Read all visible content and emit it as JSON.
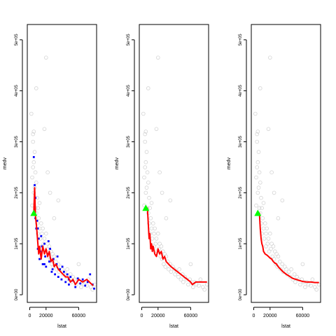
{
  "chart_data": [
    {
      "type": "scatter",
      "xlabel": "lstat",
      "ylabel": "medv",
      "xticks": [
        0,
        20000,
        60000
      ],
      "xtick_labels": [
        "0",
        "20000",
        "60000"
      ],
      "yticks": [
        0,
        100000,
        200000,
        300000,
        400000,
        500000
      ],
      "ytick_labels": [
        "0e+00",
        "1e+05",
        "2e+05",
        "3e+05",
        "4e+05",
        "5e+05"
      ],
      "xlim": [
        -3000,
        82000
      ],
      "ylim": [
        -15000,
        530000
      ],
      "colors": {
        "background_points": "#d3d3d3",
        "sample_points": "#0000ff",
        "line": "#ff0000",
        "marker": "#00ff00"
      },
      "start_point": {
        "x": 5000,
        "y": 160000
      },
      "line": {
        "x": [
          5000,
          6000,
          7000,
          8000,
          9000,
          10000,
          11000,
          12000,
          14000,
          16000,
          18000,
          20000,
          22000,
          24000,
          26000,
          28000,
          30000,
          32000,
          35000,
          38000,
          41000,
          44000,
          47000,
          50000,
          53000,
          56000,
          60000,
          65000,
          70000,
          75000,
          78000
        ],
        "y": [
          160000,
          210000,
          155000,
          140000,
          120000,
          100000,
          80000,
          95000,
          70000,
          95000,
          80000,
          90000,
          75000,
          85000,
          65000,
          70000,
          55000,
          60000,
          50000,
          45000,
          40000,
          35000,
          35000,
          25000,
          30000,
          20000,
          30000,
          25000,
          30000,
          22000,
          18000
        ]
      },
      "highlight_points": {
        "x": [
          5000,
          6000,
          7000,
          7000,
          8000,
          9000,
          10000,
          11000,
          12000,
          13000,
          15000,
          16000,
          18000,
          19000,
          20000,
          22000,
          24000,
          25000,
          27000,
          29000,
          31000,
          33000,
          35000,
          37000,
          39000,
          42000,
          44000,
          46000,
          48000,
          50000,
          53000,
          56000,
          59000,
          62000,
          65000,
          68000,
          71000,
          74000,
          77000,
          79000,
          10000,
          14000,
          18000,
          23000,
          28000,
          34000,
          40000,
          48000
        ],
        "y": [
          270000,
          215000,
          150000,
          190000,
          130000,
          145000,
          90000,
          110000,
          70000,
          85000,
          95000,
          60000,
          100000,
          75000,
          55000,
          80000,
          65000,
          90000,
          45000,
          70000,
          40000,
          60000,
          35000,
          50000,
          30000,
          45000,
          25000,
          40000,
          20000,
          35000,
          28000,
          15000,
          32000,
          22000,
          30000,
          18000,
          25000,
          40000,
          20000,
          12000,
          130000,
          115000,
          60000,
          105000,
          50000,
          75000,
          55000,
          30000
        ]
      },
      "background_points": {
        "x": [
          2000,
          3000,
          3000,
          4000,
          4000,
          5000,
          5000,
          5000,
          6000,
          6000,
          7000,
          7000,
          8000,
          8000,
          9000,
          9000,
          10000,
          10000,
          11000,
          12000,
          12000,
          13000,
          14000,
          15000,
          15000,
          16000,
          17000,
          18000,
          19000,
          20000,
          21000,
          22000,
          23000,
          24000,
          25000,
          26000,
          27000,
          28000,
          29000,
          30000,
          32000,
          33000,
          35000,
          36000,
          38000,
          40000,
          41000,
          43000,
          45000,
          46000,
          48000,
          50000,
          51000,
          53000,
          55000,
          57000,
          59000,
          61000,
          63000,
          65000,
          67000,
          70000,
          72000,
          75000,
          77000,
          80000,
          20000,
          22000,
          8000,
          35000,
          18000,
          4000,
          60000,
          30000,
          25000
        ],
        "y": [
          355000,
          230000,
          175000,
          250000,
          300000,
          320000,
          260000,
          200000,
          280000,
          210000,
          240000,
          170000,
          220000,
          160000,
          190000,
          140000,
          170000,
          120000,
          150000,
          130000,
          180000,
          110000,
          140000,
          120000,
          95000,
          130000,
          100000,
          110000,
          85000,
          120000,
          90000,
          100000,
          75000,
          95000,
          70000,
          85000,
          60000,
          80000,
          55000,
          75000,
          65000,
          50000,
          60000,
          45000,
          55000,
          50000,
          40000,
          45000,
          35000,
          50000,
          30000,
          40000,
          25000,
          35000,
          30000,
          20000,
          30000,
          25000,
          15000,
          25000,
          20000,
          18000,
          30000,
          15000,
          10000,
          20000,
          465000,
          240000,
          405000,
          185000,
          325000,
          315000,
          60000,
          150000,
          200000
        ]
      }
    },
    {
      "type": "scatter",
      "xlabel": "lstat",
      "ylabel": "medv",
      "xticks": [
        0,
        20000,
        60000
      ],
      "xtick_labels": [
        "0",
        "20000",
        "60000"
      ],
      "yticks": [
        0,
        100000,
        200000,
        300000,
        400000,
        500000
      ],
      "ytick_labels": [
        "0e+00",
        "1e+05",
        "2e+05",
        "3e+05",
        "4e+05",
        "5e+05"
      ],
      "xlim": [
        -3000,
        82000
      ],
      "ylim": [
        -15000,
        530000
      ],
      "colors": {
        "background_points": "#d3d3d3",
        "line": "#ff0000",
        "marker": "#00ff00"
      },
      "start_point": {
        "x": 5000,
        "y": 170000
      },
      "line": {
        "x": [
          5000,
          7000,
          8000,
          9000,
          10000,
          11000,
          12000,
          13000,
          14000,
          16000,
          18000,
          20000,
          22000,
          24000,
          26000,
          28000,
          30000,
          33000,
          36000,
          40000,
          44000,
          48000,
          52000,
          56000,
          60000,
          62000,
          64000,
          66000,
          70000,
          75000,
          80000
        ],
        "y": [
          170000,
          170000,
          140000,
          110000,
          120000,
          90000,
          100000,
          85000,
          95000,
          80000,
          75000,
          90000,
          80000,
          85000,
          70000,
          75000,
          65000,
          60000,
          55000,
          50000,
          45000,
          40000,
          35000,
          30000,
          25000,
          20000,
          22000,
          25000,
          25000,
          25000,
          25000
        ]
      },
      "background_points": {
        "x": [
          2000,
          3000,
          3000,
          4000,
          4000,
          5000,
          5000,
          5000,
          6000,
          6000,
          7000,
          7000,
          8000,
          8000,
          9000,
          9000,
          10000,
          10000,
          11000,
          12000,
          12000,
          13000,
          14000,
          15000,
          15000,
          16000,
          17000,
          18000,
          19000,
          20000,
          21000,
          22000,
          23000,
          24000,
          25000,
          26000,
          27000,
          28000,
          29000,
          30000,
          32000,
          33000,
          35000,
          36000,
          38000,
          40000,
          41000,
          43000,
          45000,
          46000,
          48000,
          50000,
          51000,
          53000,
          55000,
          57000,
          59000,
          61000,
          63000,
          65000,
          67000,
          70000,
          72000,
          75000,
          77000,
          80000,
          20000,
          22000,
          8000,
          35000,
          18000,
          4000,
          60000,
          30000,
          25000
        ],
        "y": [
          355000,
          230000,
          175000,
          250000,
          300000,
          320000,
          260000,
          200000,
          280000,
          210000,
          240000,
          170000,
          220000,
          160000,
          190000,
          140000,
          170000,
          120000,
          150000,
          130000,
          180000,
          110000,
          140000,
          120000,
          95000,
          130000,
          100000,
          110000,
          85000,
          120000,
          90000,
          100000,
          75000,
          95000,
          70000,
          85000,
          60000,
          80000,
          55000,
          75000,
          65000,
          50000,
          60000,
          45000,
          55000,
          50000,
          40000,
          45000,
          35000,
          50000,
          30000,
          40000,
          25000,
          35000,
          30000,
          20000,
          30000,
          25000,
          15000,
          25000,
          20000,
          18000,
          30000,
          15000,
          10000,
          20000,
          465000,
          240000,
          405000,
          185000,
          325000,
          315000,
          60000,
          150000,
          200000
        ]
      }
    },
    {
      "type": "scatter",
      "xlabel": "lstat",
      "ylabel": "medv",
      "xticks": [
        0,
        20000,
        60000
      ],
      "xtick_labels": [
        "0",
        "20000",
        "60000"
      ],
      "yticks": [
        0,
        100000,
        200000,
        300000,
        400000,
        500000
      ],
      "ytick_labels": [
        "0e+00",
        "1e+05",
        "2e+05",
        "3e+05",
        "4e+05",
        "5e+05"
      ],
      "xlim": [
        -3000,
        82000
      ],
      "ylim": [
        -15000,
        530000
      ],
      "colors": {
        "background_points": "#d3d3d3",
        "line": "#ff0000",
        "marker": "#00ff00"
      },
      "start_point": {
        "x": 5000,
        "y": 160000
      },
      "line": {
        "x": [
          5000,
          7000,
          8000,
          9000,
          10000,
          11000,
          12000,
          14000,
          16000,
          18000,
          20000,
          22000,
          24000,
          26000,
          28000,
          30000,
          33000,
          36000,
          40000,
          44000,
          48000,
          52000,
          56000,
          60000,
          65000,
          70000,
          75000,
          80000
        ],
        "y": [
          160000,
          160000,
          130000,
          110000,
          100000,
          95000,
          85000,
          80000,
          78000,
          75000,
          72000,
          70000,
          65000,
          62000,
          60000,
          55000,
          50000,
          45000,
          40000,
          36000,
          32000,
          30000,
          28000,
          26000,
          25000,
          25000,
          24000,
          24000
        ]
      },
      "background_points": {
        "x": [
          2000,
          3000,
          3000,
          4000,
          4000,
          5000,
          5000,
          5000,
          6000,
          6000,
          7000,
          7000,
          8000,
          8000,
          9000,
          9000,
          10000,
          10000,
          11000,
          12000,
          12000,
          13000,
          14000,
          15000,
          15000,
          16000,
          17000,
          18000,
          19000,
          20000,
          21000,
          22000,
          23000,
          24000,
          25000,
          26000,
          27000,
          28000,
          29000,
          30000,
          32000,
          33000,
          35000,
          36000,
          38000,
          40000,
          41000,
          43000,
          45000,
          46000,
          48000,
          50000,
          51000,
          53000,
          55000,
          57000,
          59000,
          61000,
          63000,
          65000,
          67000,
          70000,
          72000,
          75000,
          77000,
          80000,
          20000,
          22000,
          8000,
          35000,
          18000,
          4000,
          60000,
          30000,
          25000
        ],
        "y": [
          355000,
          230000,
          175000,
          250000,
          300000,
          320000,
          260000,
          200000,
          280000,
          210000,
          240000,
          170000,
          220000,
          160000,
          190000,
          140000,
          170000,
          120000,
          150000,
          130000,
          180000,
          110000,
          140000,
          120000,
          95000,
          130000,
          100000,
          110000,
          85000,
          120000,
          90000,
          100000,
          75000,
          95000,
          70000,
          85000,
          60000,
          80000,
          55000,
          75000,
          65000,
          50000,
          60000,
          45000,
          55000,
          50000,
          40000,
          45000,
          35000,
          50000,
          30000,
          40000,
          25000,
          35000,
          30000,
          20000,
          30000,
          25000,
          15000,
          25000,
          20000,
          18000,
          30000,
          15000,
          10000,
          20000,
          465000,
          240000,
          405000,
          185000,
          325000,
          315000,
          60000,
          150000,
          200000
        ]
      }
    }
  ]
}
